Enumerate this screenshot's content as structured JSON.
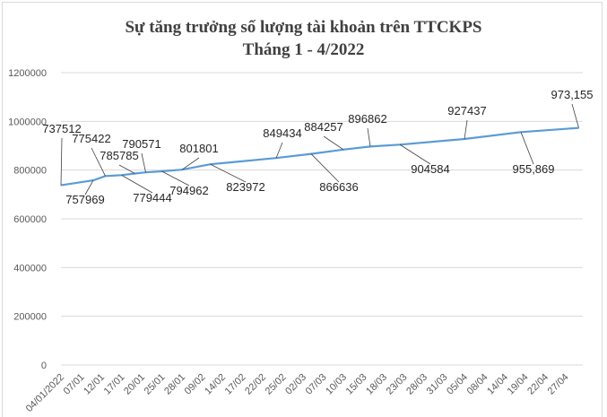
{
  "chart_data": {
    "type": "line",
    "title": "Sự tăng trưởng số lượng tài khoản trên TTCKPS",
    "subtitle": "Tháng 1 - 4/2022",
    "xlabel": "",
    "ylabel": "",
    "ylim": [
      0,
      1200000
    ],
    "yticks": [
      "0",
      "200000",
      "400000",
      "600000",
      "800000",
      "1000000",
      "1200000"
    ],
    "ytick_values": [
      0,
      200000,
      400000,
      600000,
      800000,
      1000000,
      1200000
    ],
    "xticks": [
      "04/01/2022",
      "07/01",
      "12/01",
      "17/01",
      "20/01",
      "25/01",
      "28/01",
      "09/02",
      "14/02",
      "17/02",
      "22/02",
      "25/02",
      "02/03",
      "07/03",
      "10/03",
      "15/03",
      "18/03",
      "23/03",
      "28/03",
      "31/03",
      "05/04",
      "08/04",
      "14/04",
      "19/04",
      "22/04",
      "27/04"
    ],
    "grid": "horizontal",
    "line_color": "#5b9bd5",
    "series": [
      {
        "points": [
          {
            "x": "04/01",
            "y": 737512,
            "label": "737512"
          },
          {
            "x": "10/01",
            "y": 757969,
            "label": "757969"
          },
          {
            "x": "13/01",
            "y": 775422,
            "label": "775422"
          },
          {
            "x": "17/01",
            "y": 779444,
            "label": "779444"
          },
          {
            "x": "19/01",
            "y": 785785,
            "label": "785785"
          },
          {
            "x": "21/01",
            "y": 790571,
            "label": "790571"
          },
          {
            "x": "25/01",
            "y": 794962,
            "label": "794962"
          },
          {
            "x": "28/01",
            "y": 801801,
            "label": "801801"
          },
          {
            "x": "11/02",
            "y": 823972,
            "label": "823972"
          },
          {
            "x": "24/02",
            "y": 849434,
            "label": "849434"
          },
          {
            "x": "04/03",
            "y": 866636,
            "label": "866636"
          },
          {
            "x": "10/03",
            "y": 884257,
            "label": "884257"
          },
          {
            "x": "16/03",
            "y": 896862,
            "label": "896862"
          },
          {
            "x": "22/03",
            "y": 904584,
            "label": "904584"
          },
          {
            "x": "05/04",
            "y": 927437,
            "label": "927437"
          },
          {
            "x": "18/04",
            "y": 955869,
            "label": "955,869"
          },
          {
            "x": "29/04",
            "y": 973155,
            "label": "973,155"
          }
        ]
      }
    ]
  }
}
